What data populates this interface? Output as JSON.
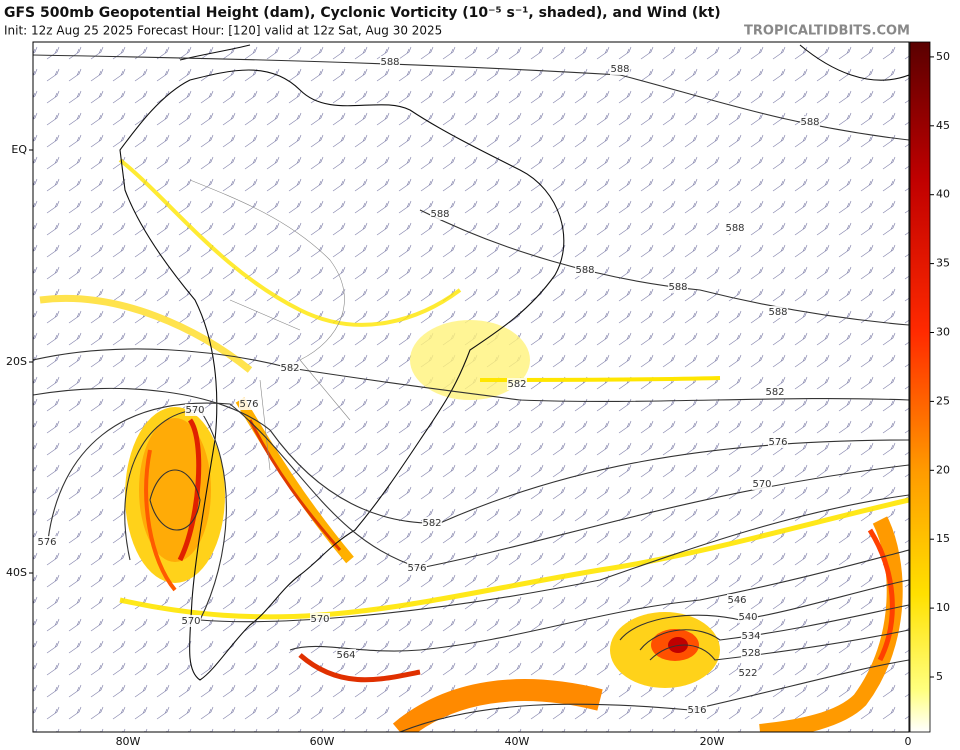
{
  "header": {
    "title": "GFS 500mb Geopotential Height (dam), Cyclonic Vorticity (10⁻⁵ s⁻¹, shaded), and Wind (kt)",
    "subtitle": "Init: 12z Aug 25 2025   Forecast Hour: [120]   valid at 12z Sat, Aug 30 2025",
    "watermark": "TROPICALTIDBITS.COM"
  },
  "lat_labels": [
    "EQ",
    "20S",
    "40S"
  ],
  "lon_labels": [
    "80W",
    "60W",
    "40W",
    "20W",
    "0"
  ],
  "colorbar": {
    "ticks": [
      5,
      10,
      15,
      20,
      25,
      30,
      35,
      40,
      45,
      50
    ]
  },
  "contour_labels": [
    "588",
    "588",
    "588",
    "588",
    "588",
    "588",
    "588",
    "588",
    "582",
    "582",
    "582",
    "582",
    "576",
    "576",
    "576",
    "576",
    "570",
    "570",
    "570",
    "570",
    "564",
    "546",
    "540",
    "534",
    "528",
    "522",
    "516"
  ]
}
